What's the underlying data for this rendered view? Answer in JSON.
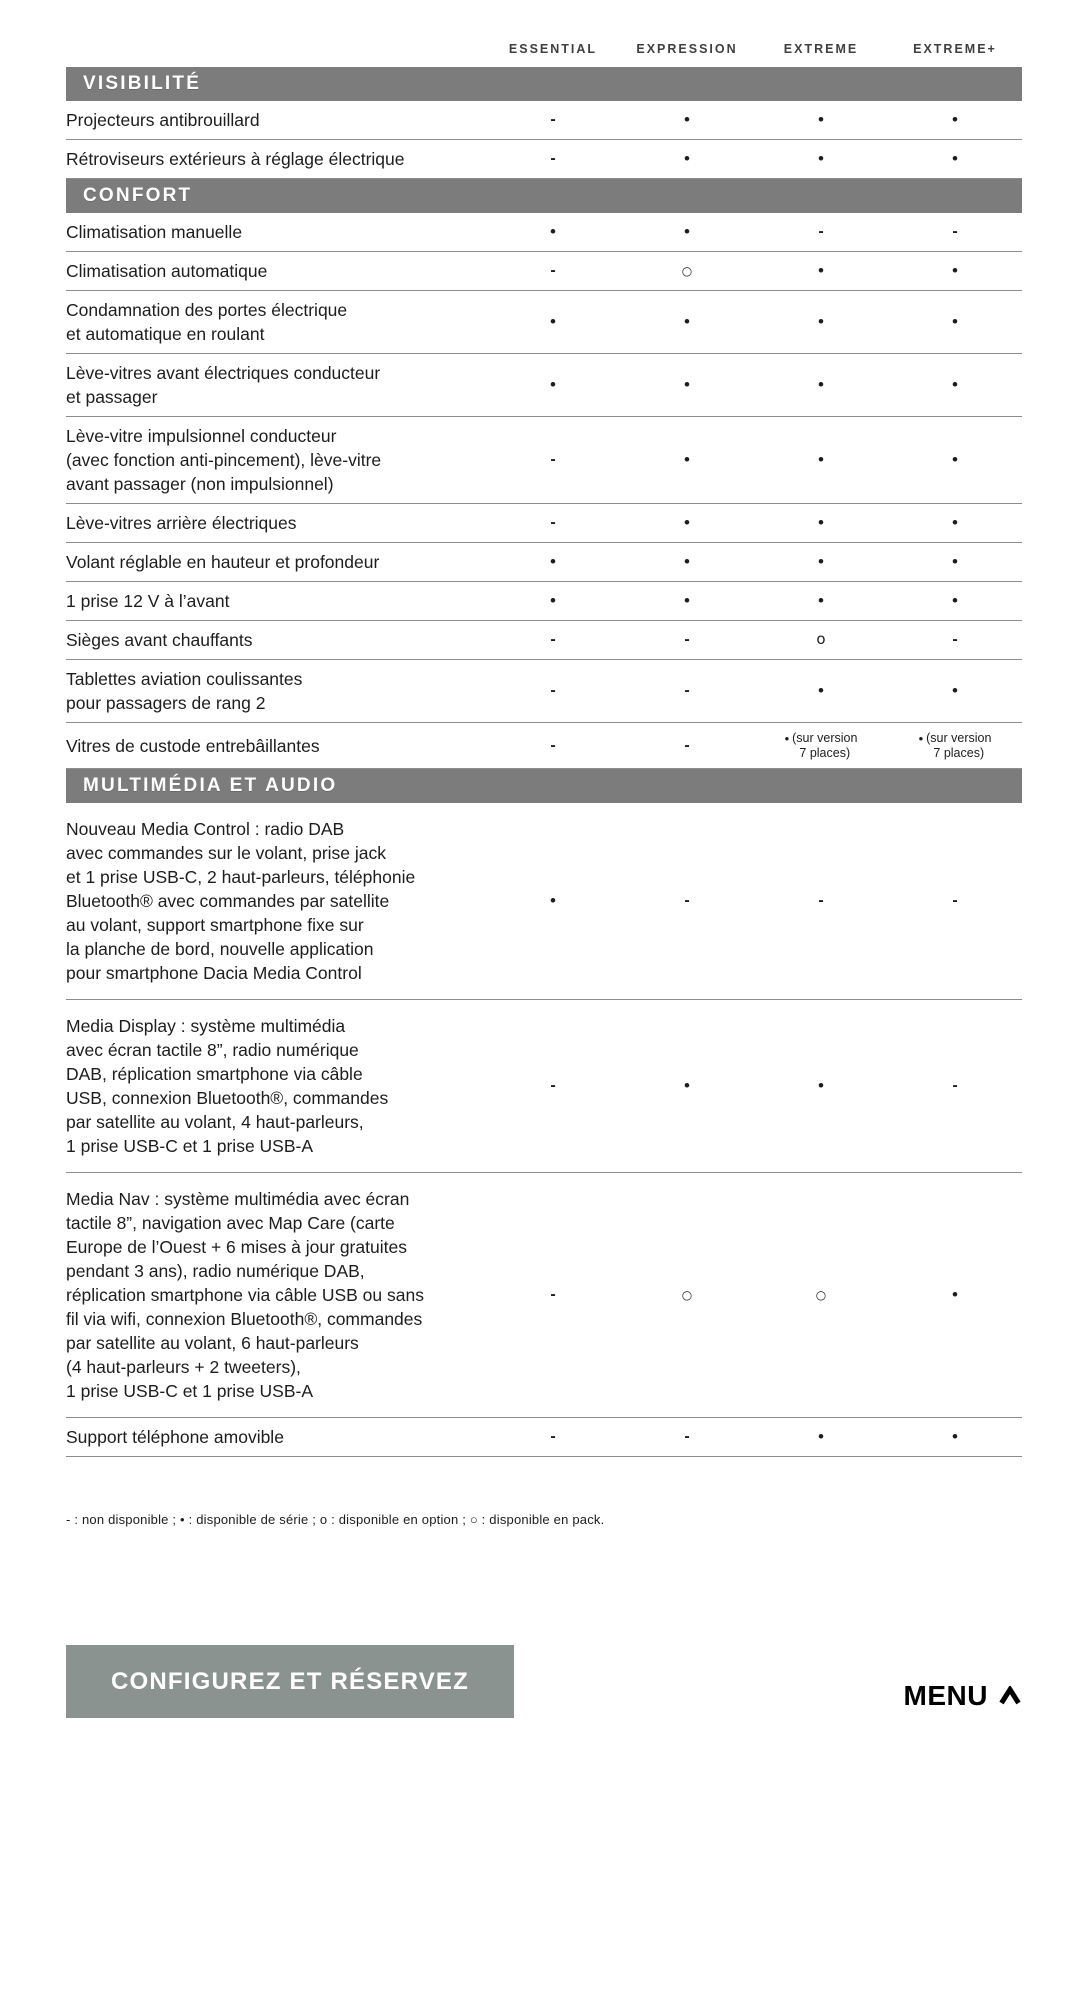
{
  "columns": [
    "ESSENTIAL",
    "EXPRESSION",
    "EXTREME",
    "EXTREME+"
  ],
  "sections": [
    {
      "id": "visibilite",
      "title": "VISIBILITÉ",
      "rows": [
        {
          "label_lines": [
            "Projecteurs antibrouillard"
          ],
          "values": [
            "-",
            "•",
            "•",
            "•"
          ]
        },
        {
          "label_lines": [
            "Rétroviseurs extérieurs à réglage électrique"
          ],
          "values": [
            "-",
            "•",
            "•",
            "•"
          ]
        }
      ]
    },
    {
      "id": "confort",
      "title": "CONFORT",
      "rows": [
        {
          "label_lines": [
            "Climatisation manuelle"
          ],
          "values": [
            "•",
            "•",
            "-",
            "-"
          ]
        },
        {
          "label_lines": [
            "Climatisation automatique"
          ],
          "values": [
            "-",
            "○",
            "•",
            "•"
          ]
        },
        {
          "label_lines": [
            "Condamnation des portes électrique",
            "et automatique en roulant"
          ],
          "values": [
            "•",
            "•",
            "•",
            "•"
          ]
        },
        {
          "label_lines": [
            "Lève-vitres avant électriques conducteur",
            "et passager"
          ],
          "values": [
            "•",
            "•",
            "•",
            "•"
          ]
        },
        {
          "label_lines": [
            "Lève-vitre impulsionnel conducteur",
            "(avec fonction anti-pincement), lève-vitre",
            "avant passager (non impulsionnel)"
          ],
          "values": [
            "-",
            "•",
            "•",
            "•"
          ]
        },
        {
          "label_lines": [
            "Lève-vitres arrière électriques"
          ],
          "values": [
            "-",
            "•",
            "•",
            "•"
          ]
        },
        {
          "label_lines": [
            "Volant réglable en hauteur et profondeur"
          ],
          "values": [
            "•",
            "•",
            "•",
            "•"
          ]
        },
        {
          "label_lines": [
            "1 prise 12 V à l’avant"
          ],
          "values": [
            "•",
            "•",
            "•",
            "•"
          ]
        },
        {
          "label_lines": [
            "Sièges avant chauffants"
          ],
          "values": [
            "-",
            "-",
            "o",
            "-"
          ]
        },
        {
          "label_lines": [
            "Tablettes aviation coulissantes",
            "pour passagers de rang 2"
          ],
          "values": [
            "-",
            "-",
            "•",
            "•"
          ]
        },
        {
          "label_lines": [
            "Vitres de custode entrebâillantes"
          ],
          "values": [
            "-",
            "-",
            {
              "symbol": "•",
              "note_lines": [
                "(sur version",
                "7 places)"
              ]
            },
            {
              "symbol": "•",
              "note_lines": [
                "(sur version",
                "7 places)"
              ]
            }
          ]
        }
      ]
    },
    {
      "id": "multimedia-et-audio",
      "title": "MULTIMÉDIA ET AUDIO",
      "rows": [
        {
          "label_lines": [
            "Nouveau Media Control : radio DAB",
            "avec commandes sur le volant, prise jack",
            "et 1 prise USB-C, 2 haut-parleurs, téléphonie",
            "Bluetooth® avec commandes par satellite",
            "au volant, support smartphone fixe sur",
            "la planche de bord, nouvelle application",
            "pour smartphone Dacia Media Control"
          ],
          "values": [
            "•",
            "-",
            "-",
            "-"
          ]
        },
        {
          "label_lines": [
            "Media Display : système multimédia",
            "avec écran tactile 8”, radio numérique",
            "DAB, réplication smartphone via câble",
            "USB, connexion Bluetooth®, commandes",
            "par satellite au volant, 4 haut-parleurs,",
            "1 prise USB-C et 1 prise USB-A"
          ],
          "values": [
            "-",
            "•",
            "•",
            "-"
          ]
        },
        {
          "label_lines": [
            "Media Nav : système multimédia avec écran",
            "tactile 8”, navigation avec Map Care (carte",
            "Europe de l’Ouest + 6 mises à jour gratuites",
            "pendant 3 ans), radio numérique DAB,",
            "réplication smartphone via câble USB ou sans",
            "fil via wifi, connexion Bluetooth®, commandes",
            "par satellite au volant, 6 haut-parleurs",
            "(4 haut-parleurs + 2 tweeters),",
            "1 prise USB-C et 1 prise USB-A"
          ],
          "values": [
            "-",
            "○",
            "○",
            "•"
          ]
        },
        {
          "label_lines": [
            "Support téléphone amovible"
          ],
          "values": [
            "-",
            "-",
            "•",
            "•"
          ]
        }
      ]
    }
  ],
  "legend": "- : non disponible ; • : disponible de série ; o : disponible en option ; ○ : disponible en pack.",
  "cta_label": "CONFIGUREZ ET RÉSERVEZ",
  "menu_label": "MENU",
  "colors": {
    "section_bar": "#7c7c7c",
    "cta_background": "#8b9390",
    "row_line": "#8d8d8d"
  }
}
